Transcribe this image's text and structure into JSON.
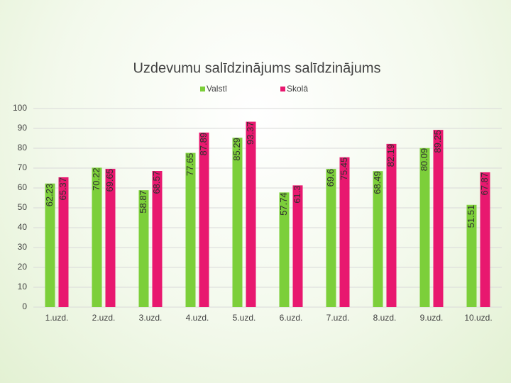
{
  "chart_data": {
    "type": "bar",
    "title": "Uzdevumu salīdzinājums salīdzinājums",
    "categories": [
      "1.uzd.",
      "2.uzd.",
      "3.uzd.",
      "4.uzd.",
      "5.uzd.",
      "6.uzd.",
      "7.uzd.",
      "8.uzd.",
      "9.uzd.",
      "10.uzd."
    ],
    "series": [
      {
        "name": "Valstī",
        "color": "#7ccf3a",
        "values": [
          62.23,
          70.22,
          58.87,
          77.65,
          85.29,
          57.74,
          69.6,
          68.49,
          80.09,
          51.51
        ]
      },
      {
        "name": "Skolā",
        "color": "#e8186f",
        "values": [
          65.37,
          69.65,
          68.57,
          87.89,
          93.37,
          61.3,
          75.45,
          82.19,
          89.25,
          67.87
        ]
      }
    ],
    "ylim": [
      0,
      100
    ],
    "yticks": [
      0,
      10,
      20,
      30,
      40,
      50,
      60,
      70,
      80,
      90,
      100
    ],
    "grid": true,
    "legend": "top"
  }
}
